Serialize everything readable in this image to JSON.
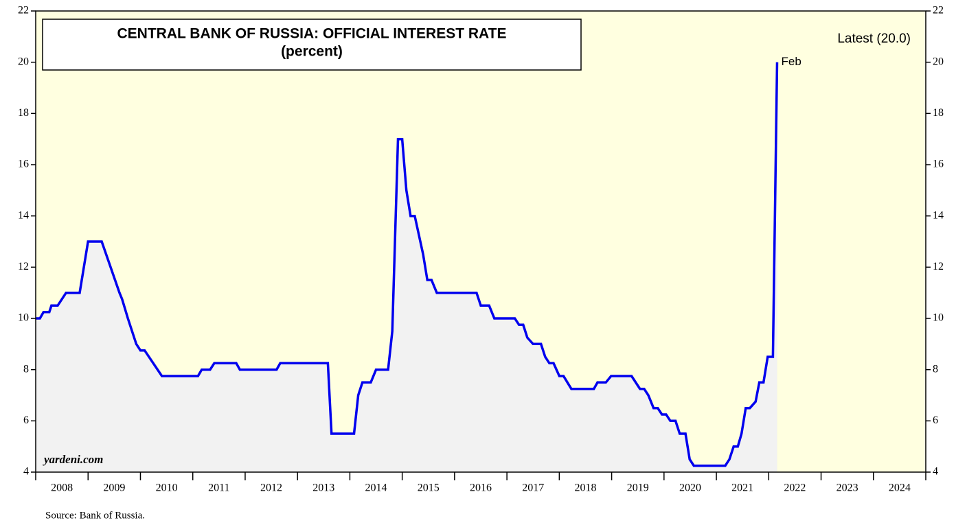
{
  "chart_data": {
    "type": "line",
    "title": "CENTRAL BANK OF RUSSIA: OFFICIAL INTEREST RATE",
    "subtitle": "(percent)",
    "annotations": {
      "latest": "Latest (20.0)",
      "last_point": "Feb",
      "watermark": "yardeni.com",
      "source": "Source: Bank of Russia."
    },
    "xlim": [
      2008,
      2025
    ],
    "xticks": [
      2008,
      2009,
      2010,
      2011,
      2012,
      2013,
      2014,
      2015,
      2016,
      2017,
      2018,
      2019,
      2020,
      2021,
      2022,
      2023,
      2024,
      2025
    ],
    "year_labels": [
      "2008",
      "2009",
      "2010",
      "2011",
      "2012",
      "2013",
      "2014",
      "2015",
      "2016",
      "2017",
      "2018",
      "2019",
      "2020",
      "2021",
      "2022",
      "2023",
      "2024"
    ],
    "ylim": [
      4,
      22
    ],
    "yticks": [
      4,
      6,
      8,
      10,
      12,
      14,
      16,
      18,
      20,
      22
    ],
    "background": "#ffffe0",
    "area_color": "#f2f2f2",
    "series": [
      {
        "name": "Official interest rate",
        "color": "#0000ee",
        "x": [
          2008.0,
          2008.08,
          2008.15,
          2008.26,
          2008.3,
          2008.42,
          2008.58,
          2008.84,
          2009.0,
          2009.26,
          2009.6,
          2009.65,
          2009.76,
          2009.92,
          2010.0,
          2010.08,
          2010.41,
          2011.1,
          2011.17,
          2011.33,
          2011.41,
          2011.83,
          2011.9,
          2012.6,
          2012.67,
          2013.58,
          2013.65,
          2014.08,
          2014.16,
          2014.24,
          2014.4,
          2014.5,
          2014.73,
          2014.81,
          2014.92,
          2015.0,
          2015.08,
          2015.16,
          2015.24,
          2015.4,
          2015.48,
          2015.56,
          2015.66,
          2016.42,
          2016.5,
          2016.66,
          2016.76,
          2017.15,
          2017.23,
          2017.31,
          2017.39,
          2017.5,
          2017.65,
          2017.73,
          2017.81,
          2017.89,
          2018.0,
          2018.08,
          2018.23,
          2018.66,
          2018.73,
          2018.89,
          2018.99,
          2019.38,
          2019.54,
          2019.62,
          2019.7,
          2019.8,
          2019.88,
          2019.96,
          2020.04,
          2020.12,
          2020.22,
          2020.3,
          2020.41,
          2020.49,
          2020.57,
          2021.17,
          2021.25,
          2021.33,
          2021.41,
          2021.48,
          2021.56,
          2021.64,
          2021.75,
          2021.82,
          2021.9,
          2021.98,
          2022.08,
          2022.16
        ],
        "values": [
          10,
          10,
          10.25,
          10.25,
          10.5,
          10.5,
          11,
          11,
          13,
          13,
          11,
          10.75,
          10,
          9,
          8.75,
          8.75,
          7.75,
          7.75,
          8,
          8,
          8.25,
          8.25,
          8,
          8,
          8.25,
          8.25,
          5.5,
          5.5,
          7,
          7.5,
          7.5,
          8,
          8,
          9.5,
          17,
          17,
          15,
          14,
          14,
          12.5,
          11.5,
          11.5,
          11,
          11,
          10.5,
          10.5,
          10,
          10,
          9.75,
          9.75,
          9.25,
          9,
          9,
          8.5,
          8.25,
          8.25,
          7.75,
          7.75,
          7.25,
          7.25,
          7.5,
          7.5,
          7.75,
          7.75,
          7.25,
          7.25,
          7,
          6.5,
          6.5,
          6.25,
          6.25,
          6,
          6,
          5.5,
          5.5,
          4.5,
          4.25,
          4.25,
          4.5,
          5,
          5,
          5.5,
          6.5,
          6.5,
          6.75,
          7.5,
          7.5,
          8.5,
          8.5,
          20
        ]
      }
    ]
  }
}
